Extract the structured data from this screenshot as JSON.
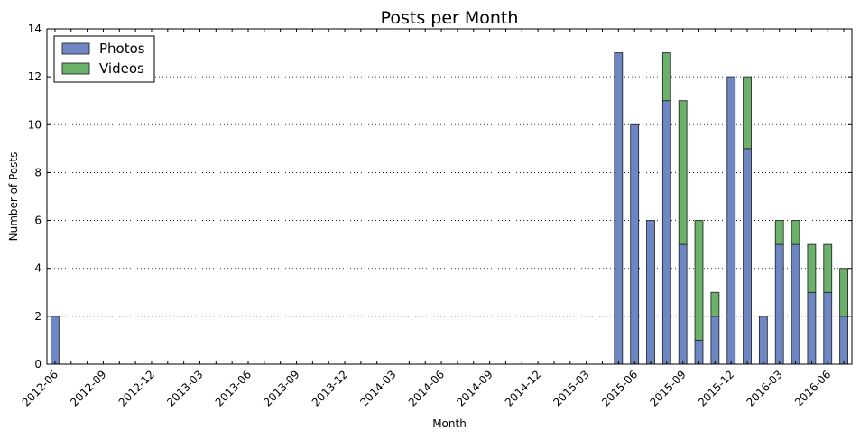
{
  "chart_data": {
    "type": "bar",
    "stacked": true,
    "title": "Posts per Month",
    "xlabel": "Month",
    "ylabel": "Number of Posts",
    "ylim": [
      0,
      14
    ],
    "yticks": [
      0,
      2,
      4,
      6,
      8,
      10,
      12,
      14
    ],
    "grid": "horizontal-dotted",
    "legend_position": "top-left",
    "categories": [
      "2012-06",
      "2012-07",
      "2012-08",
      "2012-09",
      "2012-10",
      "2012-11",
      "2012-12",
      "2013-01",
      "2013-02",
      "2013-03",
      "2013-04",
      "2013-05",
      "2013-06",
      "2013-07",
      "2013-08",
      "2013-09",
      "2013-10",
      "2013-11",
      "2013-12",
      "2014-01",
      "2014-02",
      "2014-03",
      "2014-04",
      "2014-05",
      "2014-06",
      "2014-07",
      "2014-08",
      "2014-09",
      "2014-10",
      "2014-11",
      "2014-12",
      "2015-01",
      "2015-02",
      "2015-03",
      "2015-04",
      "2015-05",
      "2015-06",
      "2015-07",
      "2015-08",
      "2015-09",
      "2015-10",
      "2015-11",
      "2015-12",
      "2016-01",
      "2016-02",
      "2016-03",
      "2016-04",
      "2016-05",
      "2016-06",
      "2016-07"
    ],
    "xtick_labels": [
      "2012-06",
      "2012-09",
      "2012-12",
      "2013-03",
      "2013-06",
      "2013-09",
      "2013-12",
      "2014-03",
      "2014-06",
      "2014-09",
      "2014-12",
      "2015-03",
      "2015-06",
      "2015-09",
      "2015-12",
      "2016-03",
      "2016-06"
    ],
    "series": [
      {
        "name": "Photos",
        "color": "#6c87c4",
        "values": [
          2,
          0,
          0,
          0,
          0,
          0,
          0,
          0,
          0,
          0,
          0,
          0,
          0,
          0,
          0,
          0,
          0,
          0,
          0,
          0,
          0,
          0,
          0,
          0,
          0,
          0,
          0,
          0,
          0,
          0,
          0,
          0,
          0,
          0,
          0,
          13,
          10,
          6,
          11,
          5,
          1,
          2,
          12,
          9,
          2,
          5,
          5,
          3,
          3,
          2
        ]
      },
      {
        "name": "Videos",
        "color": "#6ab26a",
        "values": [
          0,
          0,
          0,
          0,
          0,
          0,
          0,
          0,
          0,
          0,
          0,
          0,
          0,
          0,
          0,
          0,
          0,
          0,
          0,
          0,
          0,
          0,
          0,
          0,
          0,
          0,
          0,
          0,
          0,
          0,
          0,
          0,
          0,
          0,
          0,
          0,
          0,
          0,
          2,
          6,
          5,
          1,
          0,
          3,
          0,
          1,
          1,
          2,
          2,
          2
        ]
      }
    ]
  }
}
